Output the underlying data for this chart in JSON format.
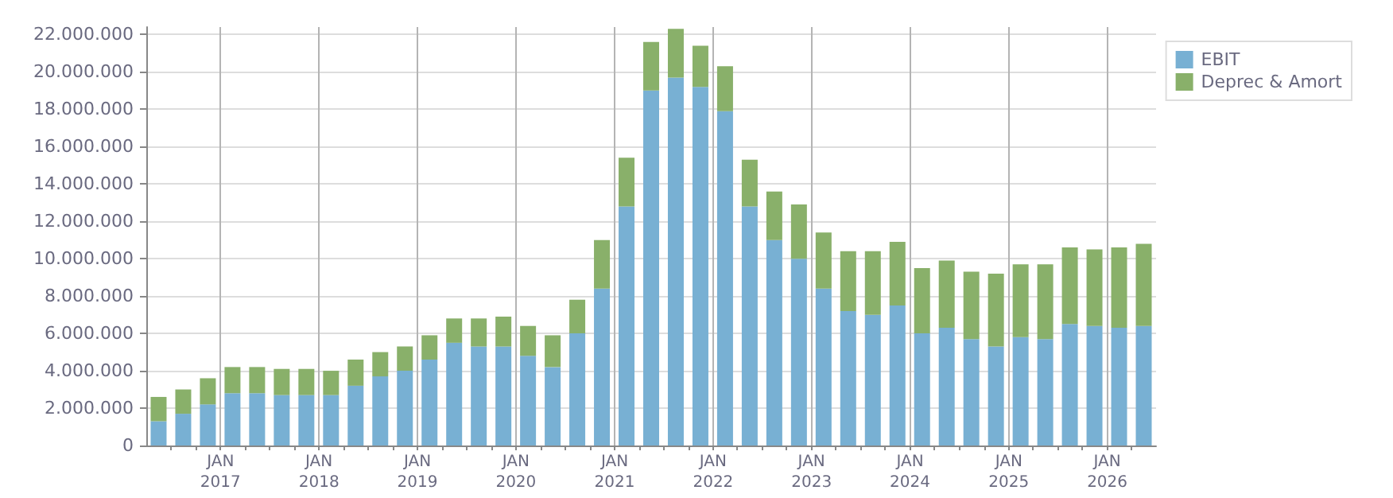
{
  "chart_data": {
    "type": "bar",
    "stacked": true,
    "x": [
      "2016-05-15",
      "2016-08-15",
      "2016-11-15",
      "2017-02-15",
      "2017-05-15",
      "2017-08-15",
      "2017-11-15",
      "2018-02-15",
      "2018-05-15",
      "2018-08-15",
      "2018-11-15",
      "2019-02-15",
      "2019-05-15",
      "2019-08-15",
      "2019-11-15",
      "2020-02-15",
      "2020-05-15",
      "2020-08-15",
      "2020-11-15",
      "2021-02-15",
      "2021-05-15",
      "2021-08-15",
      "2021-11-15",
      "2022-02-15",
      "2022-05-15",
      "2022-08-15",
      "2022-11-15",
      "2023-02-15",
      "2023-05-15",
      "2023-08-15",
      "2023-11-15",
      "2024-02-15",
      "2024-05-15",
      "2024-08-15",
      "2024-11-15",
      "2025-02-15",
      "2025-05-15",
      "2025-08-15",
      "2025-11-15",
      "2026-02-15",
      "2026-05-15"
    ],
    "series": [
      {
        "name": "EBIT",
        "color": "#78b0d3",
        "values": [
          1300000,
          1700000,
          2200000,
          2800000,
          2800000,
          2700000,
          2700000,
          2700000,
          3200000,
          3700000,
          4000000,
          4600000,
          5500000,
          5300000,
          5300000,
          4800000,
          4200000,
          6000000,
          8400000,
          12800000,
          19000000,
          19700000,
          19200000,
          17900000,
          12800000,
          11000000,
          10000000,
          8400000,
          7200000,
          7000000,
          7500000,
          6000000,
          6300000,
          5700000,
          5300000,
          5800000,
          5700000,
          6500000,
          6400000,
          6300000,
          6400000
        ]
      },
      {
        "name": "Deprec & Amort",
        "color": "#89b06a",
        "values": [
          1300000,
          1300000,
          1400000,
          1400000,
          1400000,
          1400000,
          1400000,
          1300000,
          1400000,
          1300000,
          1300000,
          1300000,
          1300000,
          1500000,
          1600000,
          1600000,
          1700000,
          1800000,
          2600000,
          2600000,
          2600000,
          2600000,
          2200000,
          2400000,
          2500000,
          2600000,
          2900000,
          3000000,
          3200000,
          3400000,
          3400000,
          3500000,
          3600000,
          3600000,
          3900000,
          3900000,
          4000000,
          4100000,
          4100000,
          4300000,
          4400000
        ]
      }
    ],
    "xlim": [
      "2016-04-01",
      "2026-07-01"
    ],
    "xticks": [
      {
        "value": "2016-07-01",
        "label": null
      },
      {
        "value": "2016-10-01",
        "label": null
      },
      {
        "value": "2017-01-01",
        "label": "JAN\n2017"
      },
      {
        "value": "2017-04-01",
        "label": null
      },
      {
        "value": "2017-07-01",
        "label": null
      },
      {
        "value": "2017-10-01",
        "label": null
      },
      {
        "value": "2018-01-01",
        "label": "JAN\n2018"
      },
      {
        "value": "2018-04-01",
        "label": null
      },
      {
        "value": "2018-07-01",
        "label": null
      },
      {
        "value": "2018-10-01",
        "label": null
      },
      {
        "value": "2019-01-01",
        "label": "JAN\n2019"
      },
      {
        "value": "2019-04-01",
        "label": null
      },
      {
        "value": "2019-07-01",
        "label": null
      },
      {
        "value": "2019-10-01",
        "label": null
      },
      {
        "value": "2020-01-01",
        "label": "JAN\n2020"
      },
      {
        "value": "2020-04-01",
        "label": null
      },
      {
        "value": "2020-07-01",
        "label": null
      },
      {
        "value": "2020-10-01",
        "label": null
      },
      {
        "value": "2021-01-01",
        "label": "JAN\n2021"
      },
      {
        "value": "2021-04-01",
        "label": null
      },
      {
        "value": "2021-07-01",
        "label": null
      },
      {
        "value": "2021-10-01",
        "label": null
      },
      {
        "value": "2022-01-01",
        "label": "JAN\n2022"
      },
      {
        "value": "2022-04-01",
        "label": null
      },
      {
        "value": "2022-07-01",
        "label": null
      },
      {
        "value": "2022-10-01",
        "label": null
      },
      {
        "value": "2023-01-01",
        "label": "JAN\n2023"
      },
      {
        "value": "2023-04-01",
        "label": null
      },
      {
        "value": "2023-07-01",
        "label": null
      },
      {
        "value": "2023-10-01",
        "label": null
      },
      {
        "value": "2024-01-01",
        "label": "JAN\n2024"
      },
      {
        "value": "2024-04-01",
        "label": null
      },
      {
        "value": "2024-07-01",
        "label": null
      },
      {
        "value": "2024-10-01",
        "label": null
      },
      {
        "value": "2025-01-01",
        "label": "JAN\n2025"
      },
      {
        "value": "2025-04-01",
        "label": null
      },
      {
        "value": "2025-07-01",
        "label": null
      },
      {
        "value": "2025-10-01",
        "label": null
      },
      {
        "value": "2026-01-01",
        "label": "JAN\n2026"
      },
      {
        "value": "2026-04-01",
        "label": null
      }
    ],
    "ylim": [
      0,
      22400000
    ],
    "yticks": [
      {
        "value": 0,
        "label": "0"
      },
      {
        "value": 2000000,
        "label": "2.000.000"
      },
      {
        "value": 4000000,
        "label": "4.000.000"
      },
      {
        "value": 6000000,
        "label": "6.000.000"
      },
      {
        "value": 8000000,
        "label": "8.000.000"
      },
      {
        "value": 10000000,
        "label": "10.000.000"
      },
      {
        "value": 12000000,
        "label": "12.000.000"
      },
      {
        "value": 14000000,
        "label": "14.000.000"
      },
      {
        "value": 16000000,
        "label": "16.000.000"
      },
      {
        "value": 18000000,
        "label": "18.000.000"
      },
      {
        "value": 20000000,
        "label": "20.000.000"
      },
      {
        "value": 22000000,
        "label": "22.000.000"
      }
    ],
    "grid": true,
    "legend": "top right"
  }
}
